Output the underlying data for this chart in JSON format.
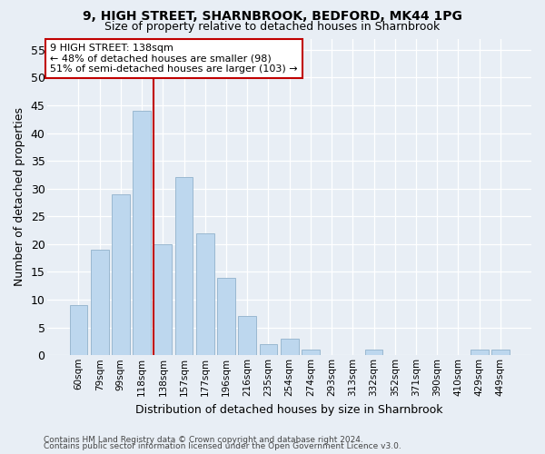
{
  "title1": "9, HIGH STREET, SHARNBROOK, BEDFORD, MK44 1PG",
  "title2": "Size of property relative to detached houses in Sharnbrook",
  "xlabel": "Distribution of detached houses by size in Sharnbrook",
  "ylabel": "Number of detached properties",
  "categories": [
    "60sqm",
    "79sqm",
    "99sqm",
    "118sqm",
    "138sqm",
    "157sqm",
    "177sqm",
    "196sqm",
    "216sqm",
    "235sqm",
    "254sqm",
    "274sqm",
    "293sqm",
    "313sqm",
    "332sqm",
    "352sqm",
    "371sqm",
    "390sqm",
    "410sqm",
    "429sqm",
    "449sqm"
  ],
  "values": [
    9,
    19,
    29,
    44,
    20,
    32,
    22,
    14,
    7,
    2,
    3,
    1,
    0,
    0,
    1,
    0,
    0,
    0,
    0,
    1,
    1
  ],
  "bar_color": "#bdd7ee",
  "bar_edge_color": "#9ab8d0",
  "vline_color": "#c00000",
  "vline_index": 4,
  "annotation_line1": "9 HIGH STREET: 138sqm",
  "annotation_line2": "← 48% of detached houses are smaller (98)",
  "annotation_line3": "51% of semi-detached houses are larger (103) →",
  "annotation_box_color": "#ffffff",
  "annotation_box_edge": "#c00000",
  "ylim_max": 57,
  "yticks": [
    0,
    5,
    10,
    15,
    20,
    25,
    30,
    35,
    40,
    45,
    50,
    55
  ],
  "footer1": "Contains HM Land Registry data © Crown copyright and database right 2024.",
  "footer2": "Contains public sector information licensed under the Open Government Licence v3.0.",
  "bg_color": "#e8eef5",
  "grid_color": "#ffffff"
}
